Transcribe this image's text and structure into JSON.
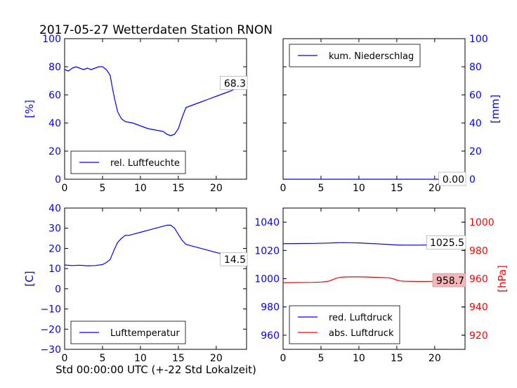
{
  "figure": {
    "title": "2017-05-27 Wetterdaten Station RNON",
    "xlabel": "Std 00:00:00 UTC (+-22 Std Lokalzeit)"
  },
  "colors": {
    "blue": "#0000ff",
    "red": "#ff0000",
    "axis": "#000000",
    "label_box_red": "#f4b6b6"
  },
  "chart_data": [
    {
      "type": "line",
      "panel": "top-left",
      "xlim": [
        0,
        24
      ],
      "ylim": [
        0,
        100
      ],
      "xticks": [
        0,
        5,
        10,
        15,
        20
      ],
      "yticks": [
        0,
        20,
        40,
        60,
        80,
        100
      ],
      "ylabel": "[%]",
      "y_axis_side": "left",
      "tick_color": "#0000ff",
      "legend": {
        "placement": "bottom-left"
      },
      "series": [
        {
          "name": "rel. Luftfeuchte",
          "color": "#0000ff",
          "x": [
            0,
            0.5,
            1,
            1.5,
            2,
            2.5,
            3,
            3.5,
            4,
            4.5,
            5,
            5.5,
            6,
            6.3,
            6.6,
            7,
            7.5,
            8,
            9,
            10,
            11,
            12,
            13,
            13.5,
            14,
            14.5,
            15,
            15.5,
            16,
            17,
            18,
            19,
            20,
            21,
            22,
            23,
            24
          ],
          "y": [
            78,
            77,
            79,
            80,
            79,
            78,
            79,
            78,
            79,
            80,
            80,
            78,
            74,
            65,
            57,
            48,
            43,
            41,
            40,
            38,
            36,
            35,
            34,
            32,
            31,
            32,
            36,
            44,
            51,
            53,
            55,
            57,
            59,
            61,
            63,
            66,
            68.3
          ]
        }
      ],
      "annotation": {
        "text": "68.3",
        "x": 24,
        "y": 68.3
      }
    },
    {
      "type": "line",
      "panel": "top-right",
      "xlim": [
        0,
        24
      ],
      "ylim": [
        0,
        100
      ],
      "xticks": [
        0,
        5,
        10,
        15,
        20
      ],
      "yticks": [
        0,
        20,
        40,
        60,
        80,
        100
      ],
      "ylabel": "[mm]",
      "y_axis_side": "right",
      "tick_color": "#0000ff",
      "legend": {
        "placement": "top-left"
      },
      "series": [
        {
          "name": "kum. Niederschlag",
          "color": "#0000ff",
          "x": [
            0,
            24
          ],
          "y": [
            0,
            0
          ]
        }
      ],
      "annotation": {
        "text": "0.00",
        "x": 24,
        "y": 0
      }
    },
    {
      "type": "line",
      "panel": "bottom-left",
      "xlim": [
        0,
        24
      ],
      "ylim": [
        -30,
        40
      ],
      "xticks": [
        0,
        5,
        10,
        15,
        20
      ],
      "yticks": [
        -30,
        -20,
        -10,
        0,
        10,
        20,
        30,
        40
      ],
      "ylabel": "[C]",
      "y_axis_side": "left",
      "tick_color": "#0000ff",
      "legend": {
        "placement": "bottom-left"
      },
      "series": [
        {
          "name": "Lufttemperatur",
          "color": "#0000ff",
          "x": [
            0,
            1,
            2,
            3,
            4,
            5,
            5.5,
            6,
            6.5,
            7,
            7.5,
            8,
            8.5,
            9,
            10,
            11,
            12,
            13,
            13.5,
            14,
            14.5,
            15,
            15.5,
            16,
            17,
            18,
            19,
            20,
            21,
            22,
            23,
            24
          ],
          "y": [
            11.8,
            11.5,
            11.7,
            11.4,
            11.5,
            12,
            13,
            14.5,
            19,
            23,
            25,
            26.5,
            26.5,
            27,
            28,
            29,
            30,
            31,
            31.5,
            31.5,
            30,
            27,
            24,
            22,
            21,
            20,
            19,
            18,
            17,
            16,
            15.2,
            14.5
          ]
        }
      ],
      "annotation": {
        "text": "14.5",
        "x": 24,
        "y": 14.5
      }
    },
    {
      "type": "line",
      "panel": "bottom-right",
      "xlim": [
        0,
        24
      ],
      "ylim": [
        950,
        1050
      ],
      "xticks": [
        0,
        5,
        10,
        15,
        20
      ],
      "yticks": [
        960,
        980,
        1000,
        1020,
        1040
      ],
      "y2lim": [
        910,
        1010
      ],
      "y2ticks": [
        920,
        940,
        960,
        980,
        1000
      ],
      "ylabel2": "[hPa]",
      "tick_color": "#0000ff",
      "tick2_color": "#ff0000",
      "legend": {
        "placement": "bottom-left"
      },
      "series": [
        {
          "name": "red. Luftdruck",
          "axis": "left",
          "color": "#0000ff",
          "x": [
            0,
            2,
            4,
            6,
            7,
            8,
            10,
            12,
            14,
            15,
            16,
            18,
            20,
            22,
            24
          ],
          "y": [
            1024.8,
            1024.9,
            1025,
            1025.2,
            1025.4,
            1025.5,
            1025.3,
            1024.8,
            1024.2,
            1023.9,
            1023.8,
            1023.8,
            1024.0,
            1024.5,
            1025.5
          ]
        },
        {
          "name": "abs. Luftdruck",
          "axis": "right",
          "color": "#ff0000",
          "x": [
            0,
            2,
            4,
            5,
            6,
            6.5,
            7,
            7.5,
            8,
            9,
            10,
            11,
            12,
            13,
            14,
            14.5,
            15,
            15.5,
            16,
            18,
            20,
            22,
            24
          ],
          "y": [
            957.2,
            957.3,
            957.4,
            957.6,
            958.2,
            959.2,
            960.3,
            960.9,
            961.2,
            961.3,
            961.3,
            961.2,
            961.0,
            960.8,
            960.6,
            960.0,
            959.0,
            958.4,
            958.2,
            958.0,
            958.1,
            958.3,
            958.7
          ]
        }
      ],
      "annotations": [
        {
          "text": "1025.5",
          "x": 24,
          "y": 1025.5,
          "axis": "left"
        },
        {
          "text": "958.7",
          "x": 24,
          "y": 958.7,
          "axis": "right"
        }
      ]
    }
  ]
}
